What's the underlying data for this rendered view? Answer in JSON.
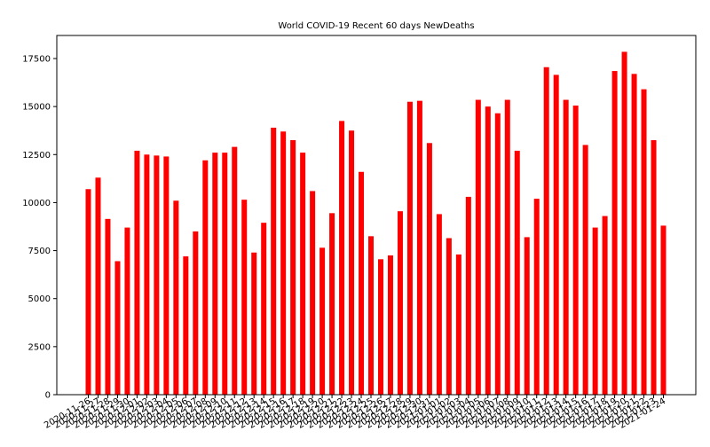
{
  "chart_data": {
    "type": "bar",
    "title": "World COVID-19 Recent 60 days NewDeaths",
    "xlabel": "",
    "ylabel": "",
    "ylim": [
      0,
      18700
    ],
    "yticks": [
      0,
      2500,
      5000,
      7500,
      10000,
      12500,
      15000,
      17500
    ],
    "ytick_labels": [
      "0",
      "2500",
      "5000",
      "7500",
      "10000",
      "12500",
      "15000",
      "17500"
    ],
    "bar_color": "#ff0000",
    "grid": false,
    "categories": [
      "2020-11-26",
      "2020-11-27",
      "2020-11-28",
      "2020-11-29",
      "2020-11-30",
      "2020-12-01",
      "2020-12-02",
      "2020-12-03",
      "2020-12-04",
      "2020-12-05",
      "2020-12-06",
      "2020-12-07",
      "2020-12-08",
      "2020-12-09",
      "2020-12-10",
      "2020-12-11",
      "2020-12-12",
      "2020-12-13",
      "2020-12-14",
      "2020-12-15",
      "2020-12-16",
      "2020-12-17",
      "2020-12-18",
      "2020-12-19",
      "2020-12-20",
      "2020-12-21",
      "2020-12-22",
      "2020-12-23",
      "2020-12-24",
      "2020-12-25",
      "2020-12-26",
      "2020-12-27",
      "2020-12-28",
      "2020-12-29",
      "2020-12-30",
      "2020-12-31",
      "2021-01-01",
      "2021-01-02",
      "2021-01-03",
      "2021-01-04",
      "2021-01-05",
      "2021-01-06",
      "2021-01-07",
      "2021-01-08",
      "2021-01-09",
      "2021-01-10",
      "2021-01-11",
      "2021-01-12",
      "2021-01-13",
      "2021-01-14",
      "2021-01-15",
      "2021-01-16",
      "2021-01-17",
      "2021-01-18",
      "2021-01-19",
      "2021-01-20",
      "2021-01-21",
      "2021-01-22",
      "2021-01-23",
      "2021-01-24"
    ],
    "values": [
      10700,
      11300,
      9150,
      6950,
      8700,
      12700,
      12500,
      12450,
      12400,
      10100,
      7200,
      8500,
      12200,
      12600,
      12600,
      12900,
      10150,
      7400,
      8950,
      13900,
      13700,
      13250,
      12600,
      10600,
      7650,
      9450,
      14250,
      13750,
      11600,
      8250,
      7050,
      7250,
      9550,
      15250,
      15300,
      13100,
      9400,
      8150,
      7300,
      10300,
      15350,
      15000,
      14650,
      15350,
      12700,
      8200,
      10200,
      17050,
      16650,
      15350,
      15050,
      13000,
      8700,
      9300,
      16850,
      17850,
      16700,
      15900,
      13250,
      8800
    ]
  }
}
